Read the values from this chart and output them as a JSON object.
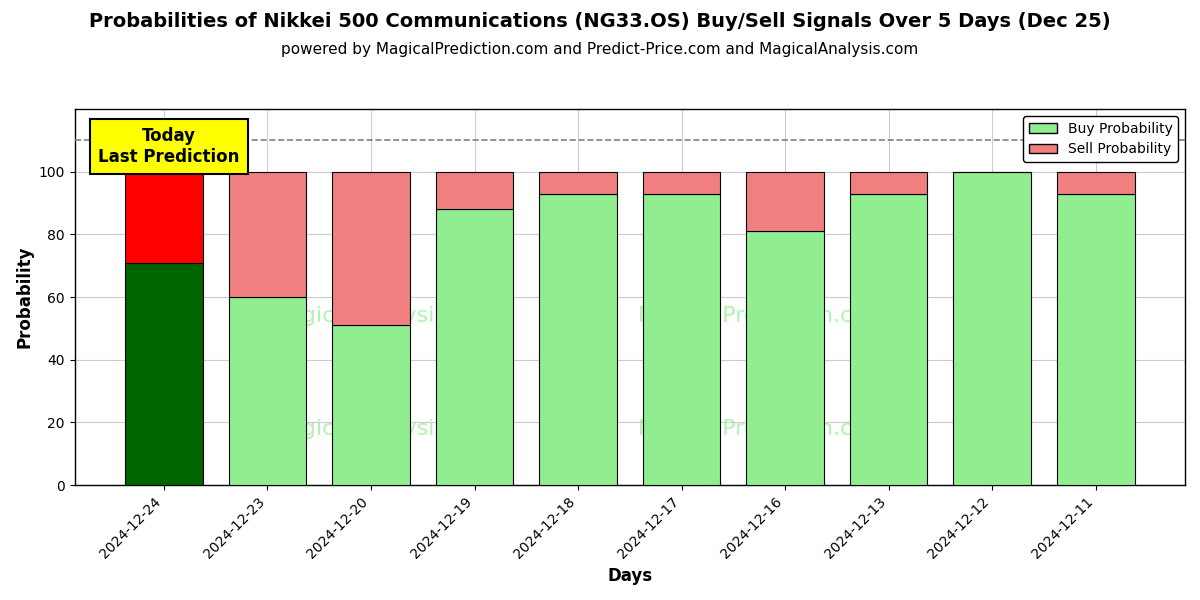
{
  "title": "Probabilities of Nikkei 500 Communications (NG33.OS) Buy/Sell Signals Over 5 Days (Dec 25)",
  "subtitle": "powered by MagicalPrediction.com and Predict-Price.com and MagicalAnalysis.com",
  "xlabel": "Days",
  "ylabel": "Probability",
  "categories": [
    "2024-12-24",
    "2024-12-23",
    "2024-12-20",
    "2024-12-19",
    "2024-12-18",
    "2024-12-17",
    "2024-12-16",
    "2024-12-13",
    "2024-12-12",
    "2024-12-11"
  ],
  "buy_values": [
    71,
    60,
    51,
    88,
    93,
    93,
    81,
    93,
    100,
    93
  ],
  "sell_values": [
    29,
    40,
    49,
    12,
    7,
    7,
    19,
    7,
    0,
    7
  ],
  "buy_color_first": "#006400",
  "buy_color_rest": "#90EE90",
  "sell_color_first": "#FF0000",
  "sell_color_rest": "#F08080",
  "bar_edgecolor": "#000000",
  "ylim": [
    0,
    120
  ],
  "yticks": [
    0,
    20,
    40,
    60,
    80,
    100
  ],
  "dashed_line_y": 110,
  "annotation_text": "Today\nLast Prediction",
  "annotation_bg": "#FFFF00",
  "legend_buy_label": "Buy Probability",
  "legend_sell_label": "Sell Probability",
  "background_color": "#ffffff",
  "grid_color": "#cccccc",
  "title_fontsize": 14,
  "subtitle_fontsize": 11,
  "axis_label_fontsize": 12,
  "tick_fontsize": 10,
  "bar_width": 0.75
}
